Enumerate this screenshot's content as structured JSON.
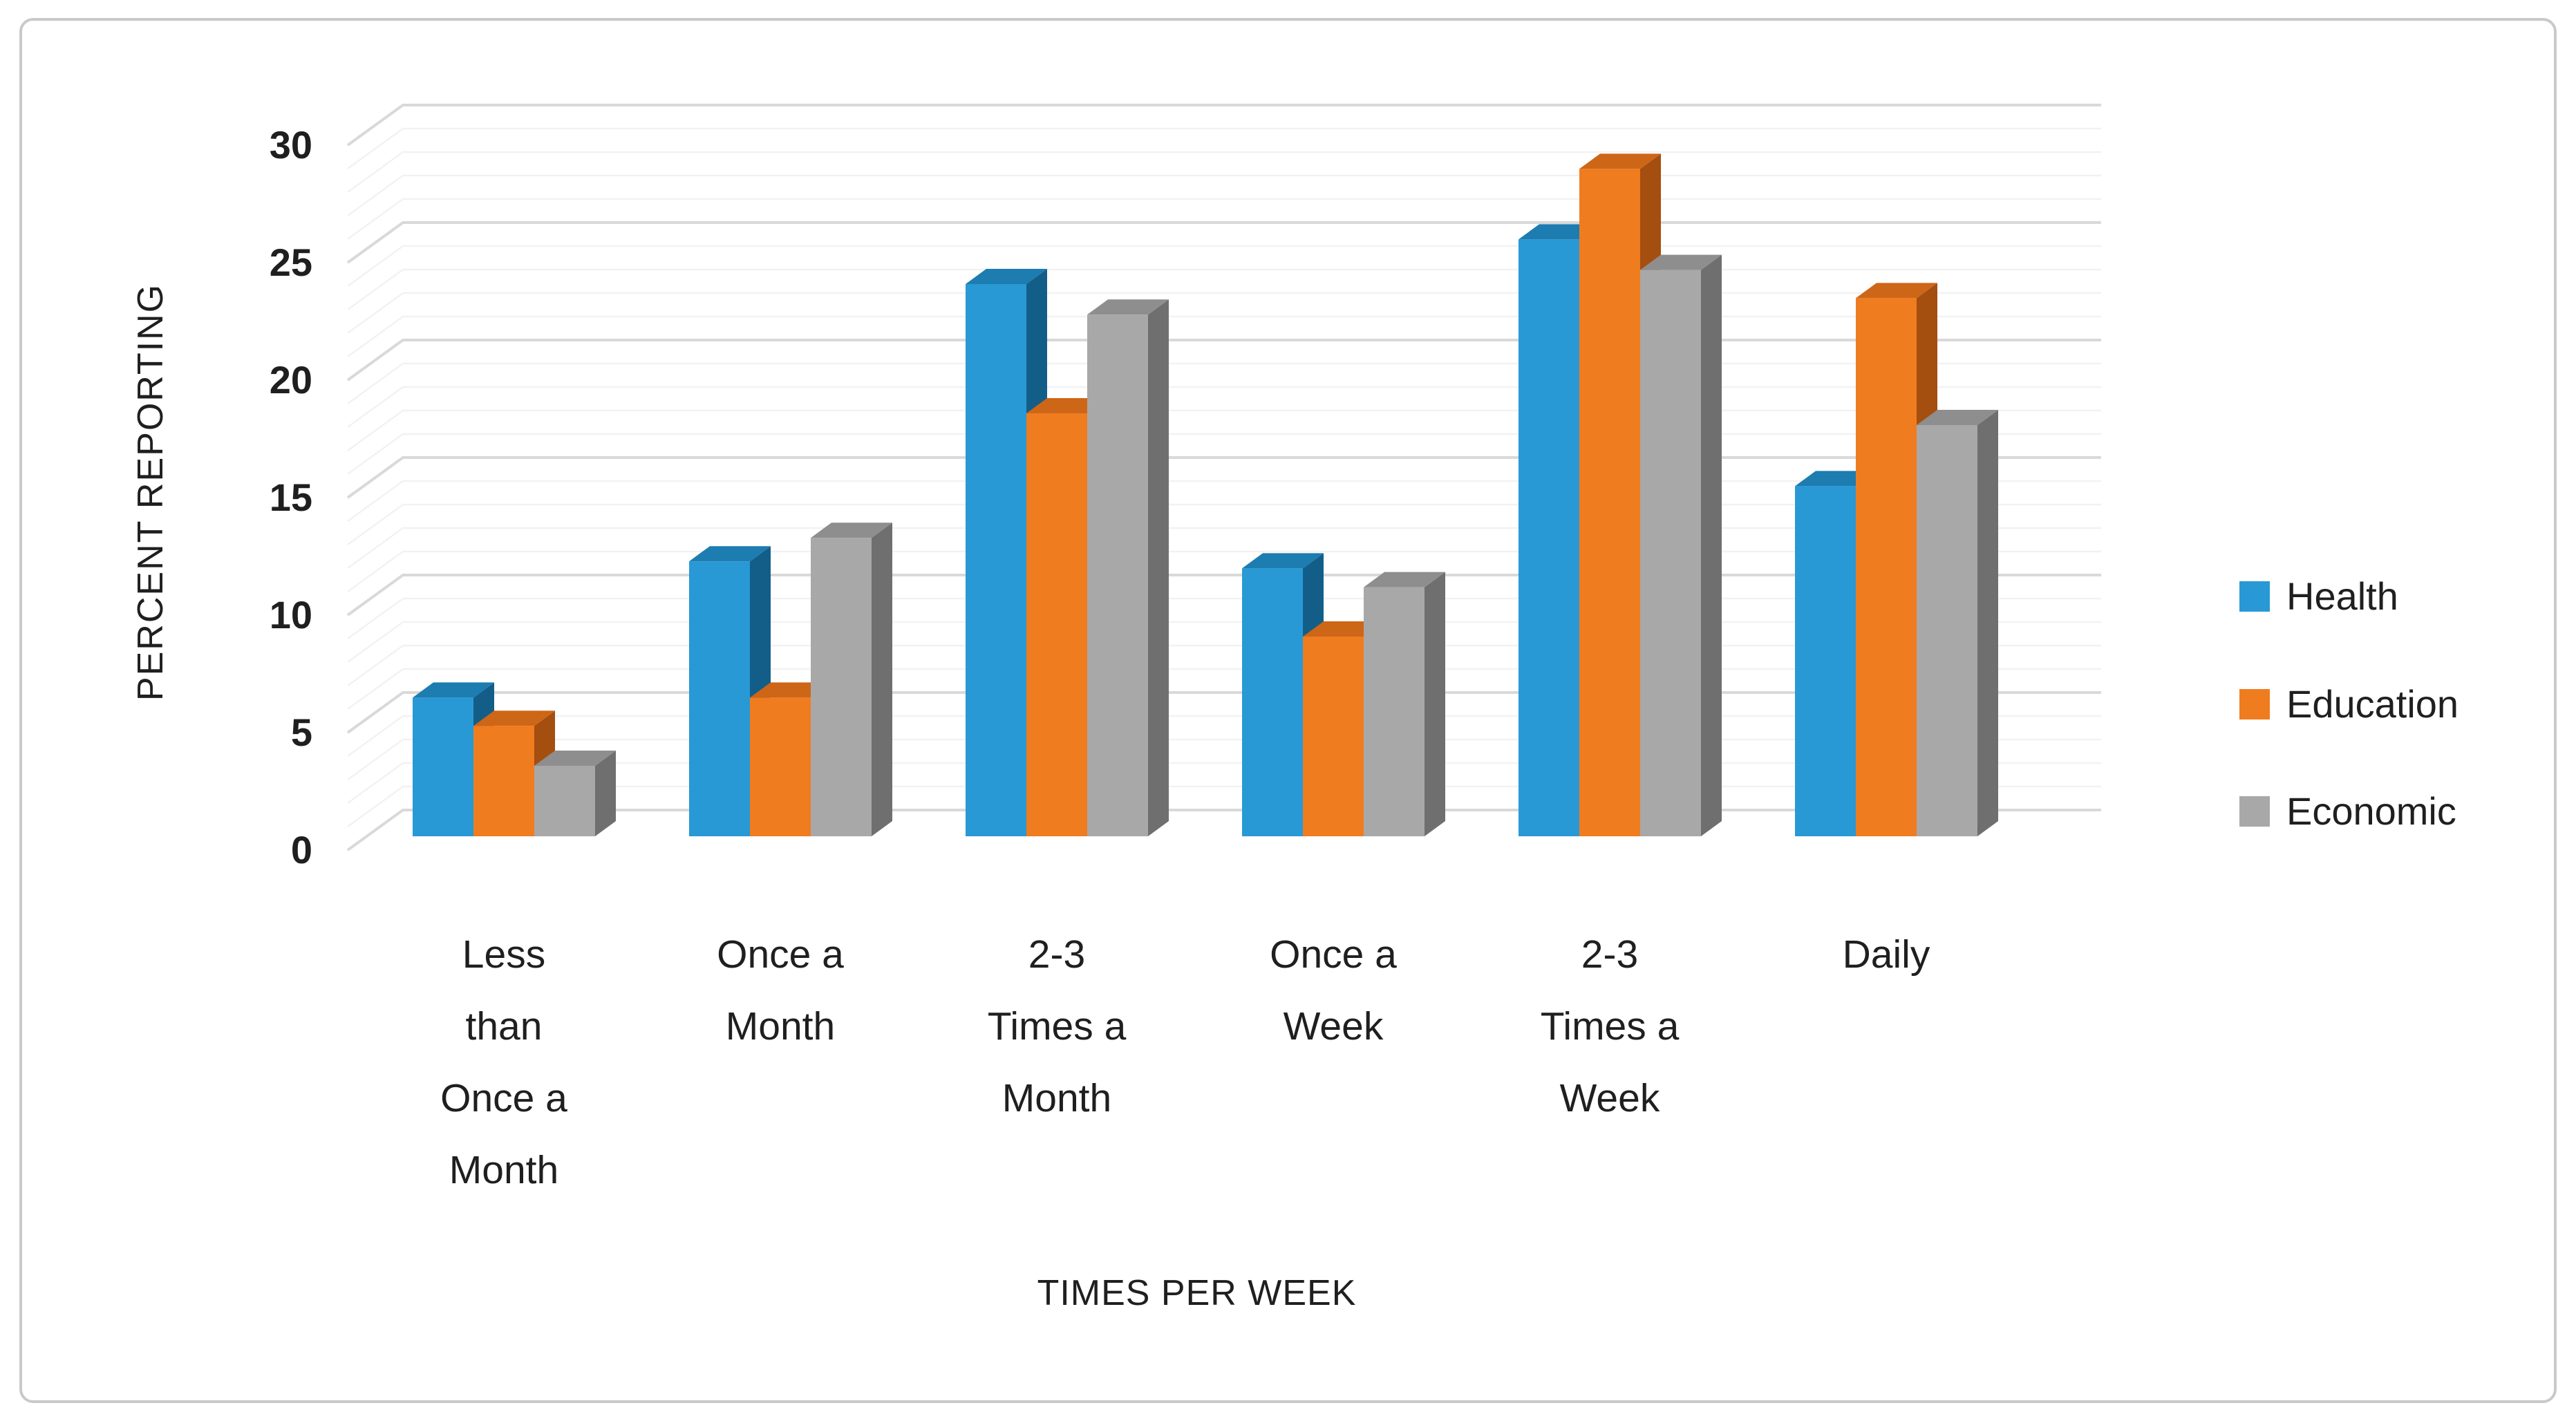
{
  "frame": {
    "background": "#ffffff",
    "border_color": "#c9c9c9"
  },
  "chart_data": {
    "type": "bar",
    "variant": "3d-clustered-column",
    "title": "",
    "xlabel": "TIMES PER WEEK",
    "ylabel": "PERCENT REPORTING",
    "ylim": [
      0,
      30
    ],
    "ytick_interval": 5,
    "minor_gridline_interval": 1,
    "grid": "on",
    "legend_position": "right",
    "yticks": [
      "0",
      "5",
      "10",
      "15",
      "20",
      "25",
      "30"
    ],
    "categories": [
      "Less than Once a Month",
      "Once a Month",
      "2-3 Times a Month",
      "Once a Week",
      "2-3 Times a Week",
      "Daily"
    ],
    "category_label_lines": [
      [
        "Less",
        "than",
        "Once a",
        "Month"
      ],
      [
        "Once a",
        "Month"
      ],
      [
        "2-3",
        "Times a",
        "Month"
      ],
      [
        "Once a",
        "Week"
      ],
      [
        "2-3",
        "Times a",
        "Week"
      ],
      [
        "Daily"
      ]
    ],
    "series": [
      {
        "name": "Health",
        "color": "#2899d5",
        "color_top": "#1d7cb0",
        "color_side": "#135e88",
        "values": [
          5.9,
          11.7,
          23.5,
          11.4,
          25.4,
          14.9
        ]
      },
      {
        "name": "Education",
        "color": "#f07c20",
        "color_top": "#ce6617",
        "color_side": "#a44e10",
        "values": [
          4.7,
          5.9,
          18.0,
          8.5,
          28.4,
          22.9
        ]
      },
      {
        "name": "Economic",
        "color": "#a8a8a8",
        "color_top": "#8e8e8e",
        "color_side": "#6f6f6f",
        "values": [
          3.0,
          12.7,
          22.2,
          10.6,
          24.1,
          17.5
        ]
      }
    ],
    "gridline_color_major": "#d9d9d9",
    "gridline_color_minor": "#f2f2f2",
    "text_color": "#1f1f1f"
  }
}
